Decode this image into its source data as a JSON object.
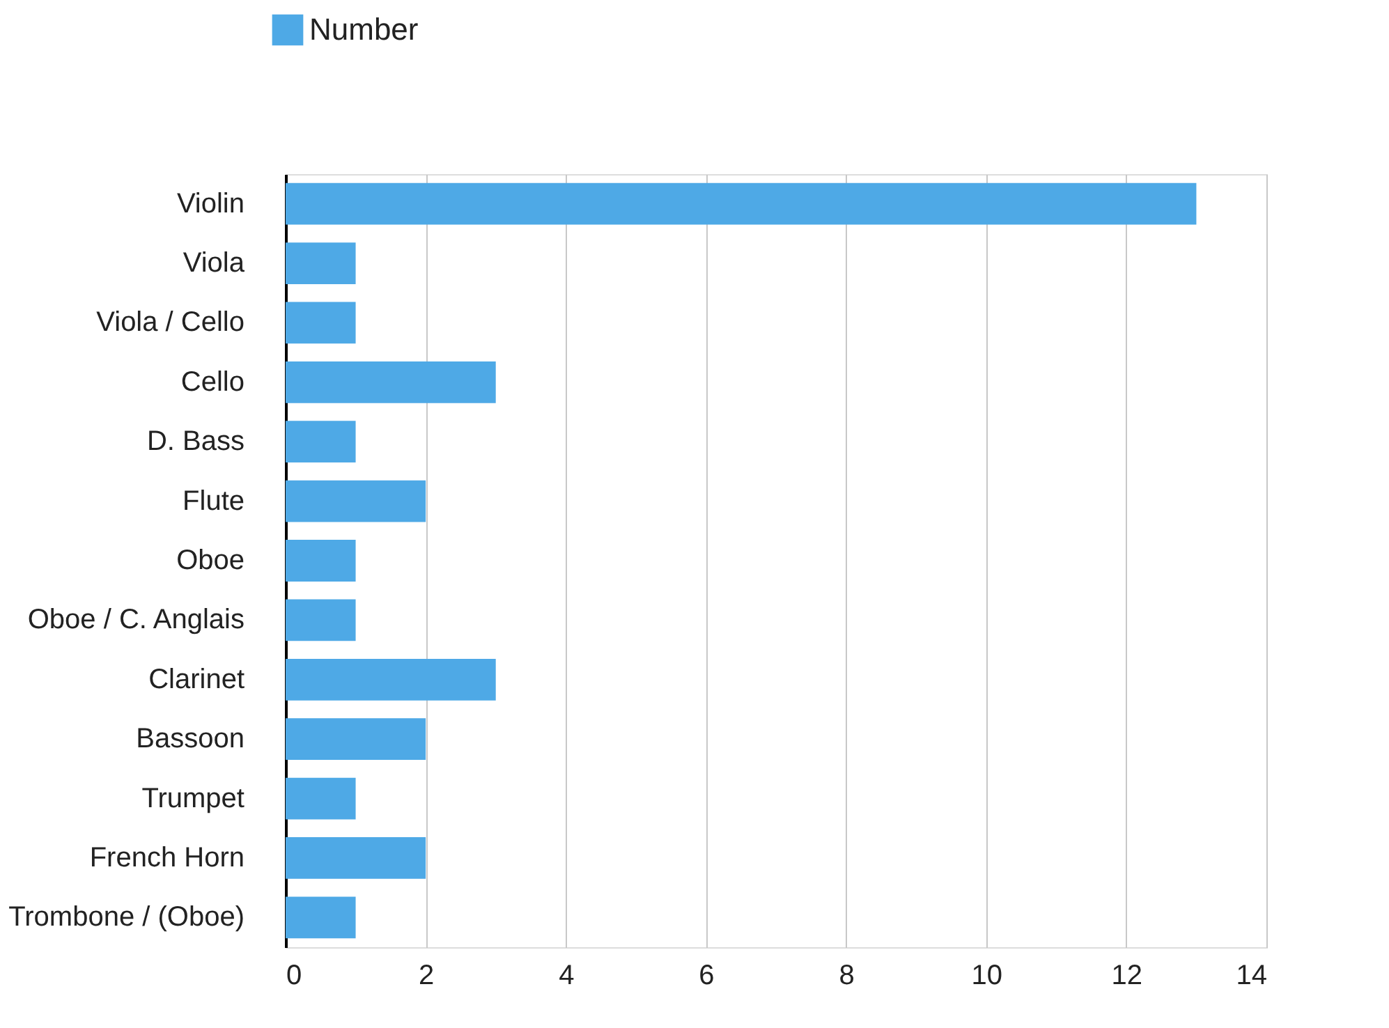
{
  "chart_data": {
    "type": "bar",
    "orientation": "horizontal",
    "categories": [
      "Violin",
      "Viola",
      "Viola / Cello",
      "Cello",
      "D. Bass",
      "Flute",
      "Oboe",
      "Oboe / C. Anglais",
      "Clarinet",
      "Bassoon",
      "Trumpet",
      "French Horn",
      "Trombone / (Oboe)"
    ],
    "series": [
      {
        "name": "Number",
        "color": "#4ea9e6",
        "values": [
          13,
          1,
          1,
          3,
          1,
          2,
          1,
          1,
          3,
          2,
          1,
          2,
          1
        ]
      }
    ],
    "xlim": [
      0,
      14
    ],
    "xticks": [
      0,
      2,
      4,
      6,
      8,
      10,
      12,
      14
    ],
    "grid": "x",
    "legend": "top left"
  }
}
